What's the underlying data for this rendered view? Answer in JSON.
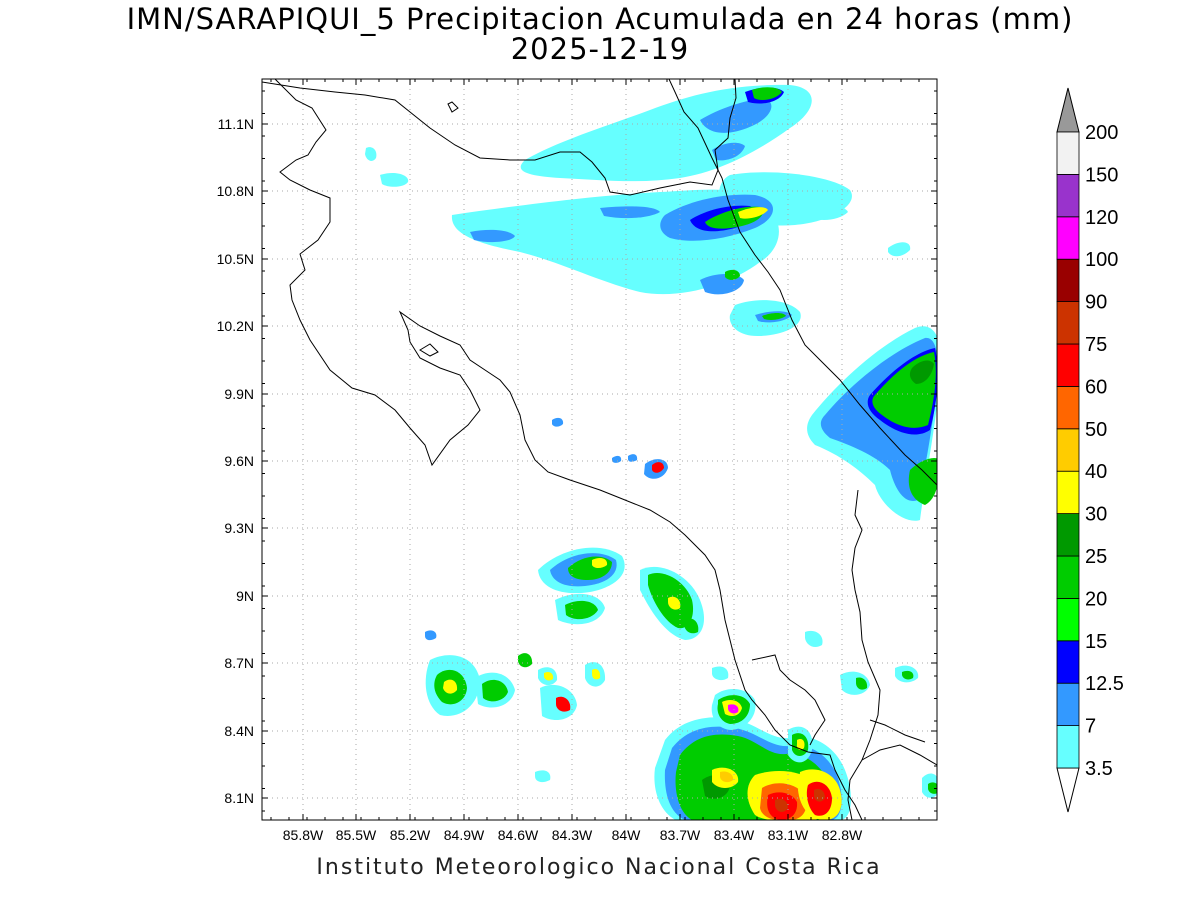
{
  "title_line1": "IMN/SARAPIQUI_5 Precipitacion Acumulada en 24 horas (mm)",
  "title_line2": "2025-12-19",
  "footer": "Instituto Meteorologico Nacional Costa Rica",
  "map": {
    "lon_range": [
      -86.0,
      -83.0
    ],
    "lat_range": [
      8.0,
      11.3
    ],
    "lat_ticks": [
      "11.1N",
      "10.8N",
      "10.5N",
      "10.2N",
      "9.9N",
      "9.6N",
      "9.3N",
      "9N",
      "8.7N",
      "8.4N",
      "8.1N"
    ],
    "lon_ticks": [
      "85.8W",
      "85.5W",
      "85.2W",
      "84.9W",
      "84.6W",
      "84.3W",
      "84W",
      "83.7W",
      "83.4W",
      "83.1W",
      "82.8W"
    ],
    "grid": true
  },
  "colorbar": {
    "labels": [
      "3.5",
      "7",
      "12.5",
      "15",
      "20",
      "25",
      "30",
      "40",
      "50",
      "60",
      "75",
      "90",
      "100",
      "120",
      "150",
      "200"
    ],
    "colors": [
      "#66ffff",
      "#3399ff",
      "#0000ff",
      "#00ff00",
      "#00cc00",
      "#009900",
      "#ffff00",
      "#ffcc00",
      "#ff6600",
      "#ff0000",
      "#cc3300",
      "#990000",
      "#ff00ff",
      "#9933cc",
      "#f2f2f2"
    ],
    "under_color": "#ffffff",
    "over_color": "#999999"
  },
  "colors": {
    "c1": "#66ffff",
    "c2": "#3399ff",
    "c3": "#0000ff",
    "c4": "#00ff00",
    "c5": "#00cc00",
    "c6": "#009900",
    "c7": "#ffff00",
    "c8": "#ffcc00",
    "c9": "#ff6600",
    "c10": "#ff0000",
    "c11": "#cc3300",
    "c12": "#990000",
    "c13": "#ff00ff"
  }
}
